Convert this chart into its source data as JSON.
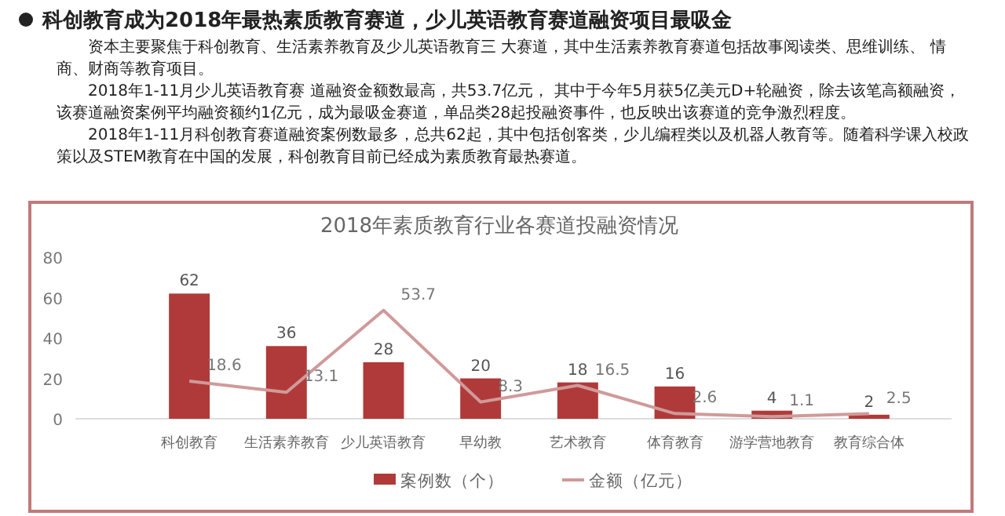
{
  "chart_data": {
    "type": "bar",
    "title": "2018年素质教育行业各赛道投融资情况",
    "annotations": [
      "科创教育成为2018年最热素质教育赛道，少儿英语教育赛道融资项目最吸金",
      "资本主要聚焦于科创教育、生活素养教育及少儿英语教育三 大赛道，其中生活素养教育赛道包括故事阅读类、思维训练、 情商、财商等教育项目。",
      "2018年1-11月少儿英语教育赛 道融资金额数最高，共53.7亿元， 其中于今年5月获5亿美元D+轮融资，除去该笔高额融资，该赛道融资案例平均融资额约1亿元，成为最吸金赛道，单品类28起投融资事件，也反映出该赛道的竞争激烈程度。",
      "2018年1-11月科创教育赛道融资案例数最多，总共62起，其中包括创客类，少儿编程类以及机器人教育等。随着科学课入校政策以及STEM教育在中国的发展，科创教育目前已经成为素质教育最热赛道。"
    ],
    "categories": [
      "科创教育",
      "生活素养教育",
      "少儿英语教育",
      "早幼教",
      "艺术教育",
      "体育教育",
      "游学营地教育",
      "教育综合体"
    ],
    "series": [
      {
        "name": "案例数（个）",
        "color": "#b03a3a",
        "values": [
          62,
          36,
          28,
          20,
          18,
          16,
          4,
          2
        ]
      },
      {
        "name": "金额（亿元）",
        "type": "line",
        "color": "#d09a9a",
        "values": [
          18.6,
          13.1,
          53.7,
          8.3,
          16.5,
          2.6,
          1.1,
          2.5
        ]
      }
    ],
    "ylim": [
      0,
      80
    ],
    "yticks": [
      0,
      20,
      40,
      60,
      80
    ],
    "grid": false,
    "legend": "bottom",
    "data_labels": true
  }
}
